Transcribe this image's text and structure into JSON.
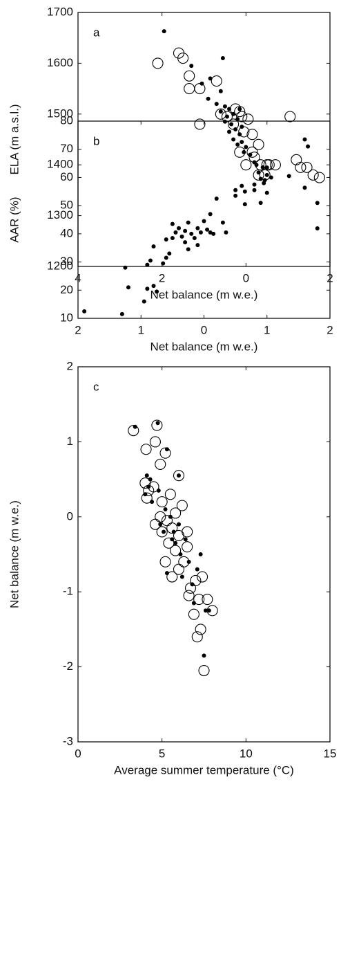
{
  "chart_data": [
    {
      "type": "scatter",
      "annotation": "a",
      "xlabel": "Net balance (m w.e.)",
      "ylabel": "ELA (m a.s.l.)",
      "xlim": [
        -4,
        2
      ],
      "xticks": [
        {
          "value": -4,
          "label": "4"
        },
        {
          "value": -2,
          "label": "2"
        },
        0,
        2
      ],
      "ylim": [
        1200,
        1700
      ],
      "yticks": [
        1200,
        1300,
        1400,
        1500,
        1600,
        1700
      ],
      "series": [
        {
          "marker": "dot",
          "color": "#000000",
          "x": [
            -1.95,
            -0.55,
            -1.3,
            -0.85,
            -0.6,
            -0.9,
            -0.7,
            -0.5,
            -0.4,
            -0.6,
            -0.3,
            -0.45,
            -0.2,
            -0.35,
            -0.1,
            -0.25,
            -0.4,
            -0.15,
            -0.3,
            -0.1,
            -0.2,
            0,
            -0.05,
            0.1,
            0.25,
            0.4,
            0.3,
            0.5,
            0.6,
            0.45,
            0.5,
            1.4,
            1.7,
            1.7,
            0.2,
            -0.5,
            -1.05,
            -0.15
          ],
          "y": [
            1663,
            1610,
            1595,
            1570,
            1545,
            1530,
            1520,
            1515,
            1510,
            1505,
            1500,
            1495,
            1490,
            1480,
            1475,
            1470,
            1465,
            1460,
            1450,
            1445,
            1440,
            1435,
            1425,
            1420,
            1400,
            1395,
            1385,
            1380,
            1375,
            1370,
            1345,
            1355,
            1325,
            1275,
            1405,
            1485,
            1560,
            1510
          ]
        },
        {
          "marker": "circle",
          "color": "#000000",
          "x": [
            -2.1,
            -1.6,
            -1.5,
            -1.35,
            -1.35,
            -1.1,
            -0.7,
            -1.1,
            -0.6,
            -0.45,
            -0.3,
            -0.15,
            -0.1,
            0.05,
            -0.05,
            0.15,
            -0.15,
            0.15,
            0.3,
            0.2,
            0.35,
            0.5,
            0.3,
            0.45,
            0.7,
            1.2,
            1.3,
            1.45,
            1.6,
            1.75,
            0.55,
            1.05,
            0,
            -0.25
          ],
          "y": [
            1600,
            1620,
            1610,
            1575,
            1550,
            1550,
            1565,
            1480,
            1500,
            1495,
            1480,
            1505,
            1495,
            1490,
            1465,
            1460,
            1425,
            1425,
            1440,
            1415,
            1400,
            1400,
            1380,
            1380,
            1400,
            1410,
            1395,
            1395,
            1380,
            1375,
            1400,
            1495,
            1400,
            1510
          ]
        }
      ]
    },
    {
      "type": "scatter",
      "annotation": "b",
      "xlabel": "Net balance (m w.e.)",
      "ylabel": "AAR (%)",
      "xlim": [
        -2,
        2
      ],
      "xticks": [
        {
          "value": -2,
          "label": "2"
        },
        {
          "value": -1,
          "label": "1"
        },
        0,
        1,
        2
      ],
      "ylim": [
        10,
        80
      ],
      "yticks": [
        10,
        20,
        30,
        40,
        50,
        60,
        70,
        80
      ],
      "series": [
        {
          "marker": "dot",
          "color": "#000000",
          "x": [
            -1.9,
            -1.3,
            -1.25,
            -1.2,
            -0.95,
            -0.9,
            -0.9,
            -0.85,
            -0.8,
            -0.8,
            -0.75,
            -0.65,
            -0.6,
            -0.6,
            -0.55,
            -0.5,
            -0.5,
            -0.45,
            -0.4,
            -0.35,
            -0.3,
            -0.3,
            -0.25,
            -0.25,
            -0.2,
            -0.15,
            -0.1,
            -0.1,
            -0.05,
            0,
            0.05,
            0.1,
            0.1,
            0.15,
            0.2,
            0.3,
            0.35,
            0.5,
            0.5,
            0.6,
            0.65,
            0.65,
            0.8,
            0.8,
            0.9,
            0.9,
            0.95,
            1.0,
            1.35,
            1.6,
            1.65
          ],
          "y": [
            12.5,
            11.5,
            28,
            21,
            16,
            20.5,
            29,
            30.5,
            35.5,
            21.5,
            19.5,
            29.5,
            38,
            31.5,
            33,
            43.5,
            38.5,
            40.5,
            42,
            39,
            41,
            37,
            34.5,
            44,
            40,
            38.5,
            42,
            36,
            40.5,
            44.5,
            41.5,
            47,
            40.5,
            40,
            52.5,
            44,
            40.5,
            55.5,
            53.5,
            57,
            50.5,
            55,
            55.5,
            57.5,
            59.5,
            51,
            58,
            63.5,
            60.5,
            73.5,
            71
          ]
        }
      ]
    },
    {
      "type": "scatter",
      "annotation": "c",
      "xlabel": "Average summer temperature (°C)",
      "ylabel": "Net balance (m w.e.)",
      "xlim": [
        0,
        15
      ],
      "xticks": [
        0,
        5,
        10,
        15
      ],
      "ylim": [
        -3,
        2
      ],
      "yticks": [
        -3,
        -2,
        -1,
        0,
        1,
        2
      ],
      "series": [
        {
          "marker": "circle",
          "color": "#000000",
          "x": [
            3.3,
            4.05,
            4.6,
            4.7,
            4.9,
            5.2,
            6.0,
            4.0,
            4.2,
            4.1,
            4.5,
            5.0,
            5.5,
            6.2,
            4.6,
            5.0,
            5.3,
            5.6,
            6.0,
            6.5,
            5.2,
            5.8,
            6.3,
            5.4,
            6.0,
            6.5,
            6.7,
            7.0,
            6.6,
            7.4,
            7.2,
            6.9,
            7.7,
            8.0,
            7.3,
            7.1,
            7.5,
            5.6,
            4.9,
            5.8
          ],
          "y": [
            1.15,
            0.9,
            1.0,
            1.22,
            0.7,
            0.85,
            0.55,
            0.45,
            0.35,
            0.25,
            0.4,
            0.2,
            0.3,
            0.15,
            -0.1,
            -0.2,
            -0.05,
            -0.15,
            -0.25,
            -0.2,
            -0.6,
            -0.45,
            -0.6,
            -0.35,
            -0.7,
            -0.4,
            -0.95,
            -0.85,
            -1.05,
            -0.8,
            -1.1,
            -1.3,
            -1.1,
            -1.25,
            -1.5,
            -1.6,
            -2.05,
            -0.8,
            0.0,
            0.05
          ]
        },
        {
          "marker": "dot",
          "color": "#000000",
          "x": [
            3.4,
            4.75,
            5.3,
            6.0,
            4.1,
            4.3,
            4.2,
            4.0,
            4.4,
            4.8,
            5.1,
            5.6,
            5.8,
            6.1,
            5.3,
            6.2,
            6.6,
            6.8,
            7.3,
            7.1,
            7.6,
            7.5,
            4.9,
            5.5,
            6.4,
            5.7,
            5.2,
            6.0,
            6.9,
            7.8
          ],
          "y": [
            1.2,
            1.25,
            0.9,
            0.55,
            0.55,
            0.5,
            0.4,
            0.3,
            0.2,
            0.35,
            -0.2,
            -0.3,
            -0.35,
            -0.5,
            -0.75,
            -0.8,
            -0.6,
            -0.9,
            -0.5,
            -0.7,
            -1.25,
            -1.85,
            -0.1,
            0.0,
            -0.3,
            -0.2,
            0.1,
            -0.1,
            -1.15,
            -1.25
          ]
        }
      ]
    }
  ]
}
